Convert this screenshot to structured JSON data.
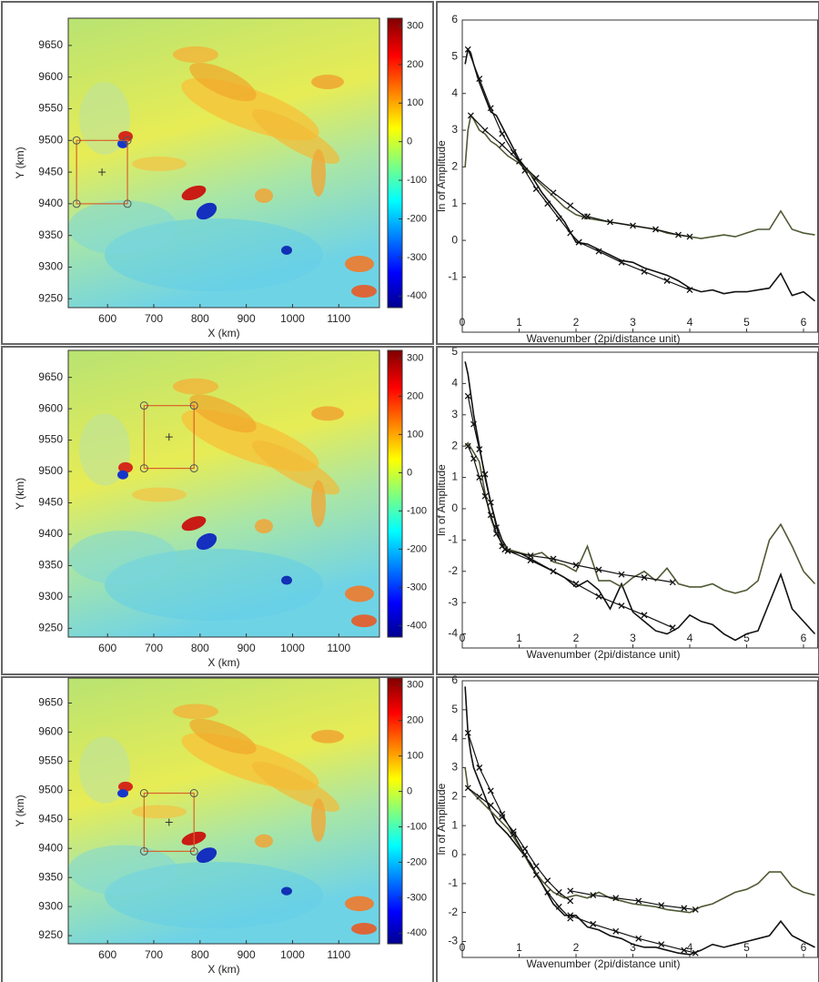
{
  "chart_data": [
    {
      "type": "map",
      "xlabel": "X (km)",
      "ylabel": "Y (km)",
      "xlim": [
        515,
        1188
      ],
      "xticks": [
        600,
        700,
        800,
        900,
        1000,
        1100
      ],
      "ylim": [
        9236,
        9693
      ],
      "yticks": [
        9250,
        9300,
        9350,
        9400,
        9450,
        9500,
        9550,
        9600,
        9650
      ],
      "colorbar": {
        "lim": [
          -430,
          320
        ],
        "ticks": [
          300,
          200,
          100,
          0,
          -100,
          -200,
          -300,
          -400
        ]
      },
      "box": {
        "x": [
          533,
          643
        ],
        "y": [
          9400,
          9500
        ],
        "center": [
          588,
          9450
        ]
      },
      "box_color": "#d9622b"
    },
    {
      "type": "line",
      "xlabel": "Wavenumber (2pi/distance unit)",
      "ylabel": "ln of Amplitude",
      "xlim": [
        0,
        6.25
      ],
      "xticks": [
        0,
        1,
        2,
        3,
        4,
        5,
        6
      ],
      "ylim": [
        -2.5,
        6
      ],
      "yticks": [
        -1,
        0,
        1,
        2,
        3,
        4,
        5,
        6
      ],
      "series": [
        {
          "color": "#111111",
          "x": [
            0.05,
            0.1,
            0.15,
            0.2,
            0.3,
            0.4,
            0.5,
            0.6,
            0.8,
            1.0,
            1.2,
            1.4,
            1.6,
            1.8,
            2.0,
            2.2,
            2.4,
            2.6,
            2.8,
            3.0,
            3.2,
            3.4,
            3.6,
            3.8,
            4.0,
            4.2,
            4.4,
            4.6,
            4.8,
            5.0,
            5.2,
            5.4,
            5.6,
            5.8,
            6.0,
            6.2
          ],
          "values": [
            4.8,
            5.2,
            5.1,
            4.8,
            4.3,
            3.9,
            3.5,
            3.4,
            2.8,
            2.2,
            1.8,
            1.3,
            0.9,
            0.5,
            -0.05,
            -0.1,
            -0.25,
            -0.4,
            -0.55,
            -0.6,
            -0.75,
            -0.85,
            -0.95,
            -1.1,
            -1.3,
            -1.4,
            -1.35,
            -1.45,
            -1.4,
            -1.4,
            -1.35,
            -1.3,
            -0.9,
            -1.5,
            -1.4,
            -1.65
          ]
        },
        {
          "color": "#4f5a35",
          "x": [
            0.05,
            0.1,
            0.15,
            0.2,
            0.3,
            0.4,
            0.5,
            0.6,
            0.8,
            1.0,
            1.2,
            1.4,
            1.6,
            1.8,
            2.0,
            2.2,
            2.4,
            2.6,
            2.8,
            3.0,
            3.2,
            3.4,
            3.6,
            3.8,
            4.0,
            4.2,
            4.4,
            4.6,
            4.8,
            5.0,
            5.2,
            5.4,
            5.6,
            5.8,
            6.0,
            6.2
          ],
          "values": [
            2.0,
            3.0,
            3.4,
            3.3,
            3.0,
            2.9,
            2.7,
            2.6,
            2.3,
            2.1,
            1.8,
            1.5,
            1.2,
            0.9,
            0.7,
            0.6,
            0.55,
            0.5,
            0.45,
            0.4,
            0.35,
            0.3,
            0.2,
            0.15,
            0.1,
            0.05,
            0.1,
            0.15,
            0.1,
            0.2,
            0.3,
            0.3,
            0.8,
            0.3,
            0.2,
            0.15
          ]
        },
        {
          "color": "#111111",
          "marker": "x",
          "x": [
            0.1,
            0.3,
            0.5,
            0.7,
            0.9,
            1.1,
            1.3,
            1.5,
            1.7,
            1.9,
            2.05
          ],
          "values": [
            5.2,
            4.4,
            3.6,
            2.9,
            2.4,
            1.9,
            1.4,
            1.0,
            0.6,
            0.2,
            -0.05
          ]
        },
        {
          "color": "#111111",
          "marker": "x",
          "x": [
            2.05,
            2.4,
            2.8,
            3.2,
            3.6,
            4.0
          ],
          "values": [
            -0.05,
            -0.3,
            -0.6,
            -0.85,
            -1.1,
            -1.35
          ]
        },
        {
          "color": "#111111",
          "marker": "x",
          "x": [
            0.15,
            0.4,
            0.7,
            1.0,
            1.3,
            1.6,
            1.9,
            2.15
          ],
          "values": [
            3.4,
            3.0,
            2.6,
            2.15,
            1.7,
            1.3,
            0.95,
            0.65
          ]
        },
        {
          "color": "#111111",
          "marker": "x",
          "x": [
            2.2,
            2.6,
            3.0,
            3.4,
            3.8,
            4.0
          ],
          "values": [
            0.65,
            0.5,
            0.4,
            0.3,
            0.15,
            0.1
          ]
        }
      ]
    },
    {
      "type": "map",
      "xlabel": "X (km)",
      "ylabel": "Y (km)",
      "xlim": [
        515,
        1188
      ],
      "xticks": [
        600,
        700,
        800,
        900,
        1000,
        1100
      ],
      "ylim": [
        9236,
        9693
      ],
      "yticks": [
        9250,
        9300,
        9350,
        9400,
        9450,
        9500,
        9550,
        9600,
        9650
      ],
      "colorbar": {
        "lim": [
          -430,
          320
        ],
        "ticks": [
          300,
          200,
          100,
          0,
          -100,
          -200,
          -300,
          -400
        ]
      },
      "box": {
        "x": [
          679,
          787
        ],
        "y": [
          9505,
          9605
        ],
        "center": [
          733,
          9555
        ]
      },
      "box_color": "#d9622b"
    },
    {
      "type": "line",
      "xlabel": "Wavenumber (2pi/distance unit)",
      "ylabel": "ln of Amplitude",
      "xlim": [
        0,
        6.25
      ],
      "xticks": [
        0,
        1,
        2,
        3,
        4,
        5,
        6
      ],
      "ylim": [
        -4.45,
        5
      ],
      "yticks": [
        -4,
        -3,
        -2,
        -1,
        0,
        1,
        2,
        3,
        4,
        5
      ],
      "series": [
        {
          "color": "#111111",
          "x": [
            0.05,
            0.1,
            0.2,
            0.3,
            0.4,
            0.5,
            0.6,
            0.7,
            0.8,
            1.0,
            1.2,
            1.4,
            1.6,
            1.8,
            2.0,
            2.2,
            2.4,
            2.6,
            2.8,
            3.0,
            3.2,
            3.4,
            3.6,
            3.8,
            4.0,
            4.2,
            4.4,
            4.6,
            4.8,
            5.0,
            5.2,
            5.4,
            5.6,
            5.8,
            6.0,
            6.2
          ],
          "values": [
            4.7,
            4.3,
            3.0,
            2.0,
            1.0,
            0.2,
            -0.5,
            -1.0,
            -1.3,
            -1.4,
            -1.6,
            -1.8,
            -2.0,
            -2.2,
            -2.5,
            -2.3,
            -2.6,
            -3.2,
            -2.4,
            -3.3,
            -3.6,
            -3.9,
            -4.0,
            -3.8,
            -3.4,
            -3.6,
            -3.7,
            -4.0,
            -4.2,
            -4.0,
            -3.9,
            -3.0,
            -2.1,
            -3.2,
            -3.6,
            -4.0
          ]
        },
        {
          "color": "#4f5a35",
          "x": [
            0.05,
            0.1,
            0.2,
            0.3,
            0.4,
            0.5,
            0.6,
            0.7,
            0.8,
            1.0,
            1.2,
            1.4,
            1.6,
            1.8,
            2.0,
            2.2,
            2.4,
            2.6,
            2.8,
            3.0,
            3.2,
            3.4,
            3.6,
            3.8,
            4.0,
            4.2,
            4.4,
            4.6,
            4.8,
            5.0,
            5.2,
            5.4,
            5.6,
            5.8,
            6.0,
            6.2
          ],
          "values": [
            2.0,
            2.1,
            1.8,
            1.5,
            0.5,
            -0.3,
            -0.8,
            -1.1,
            -1.3,
            -1.4,
            -1.5,
            -1.4,
            -1.7,
            -1.8,
            -2.0,
            -1.2,
            -2.3,
            -2.3,
            -2.5,
            -2.2,
            -2.0,
            -2.3,
            -1.9,
            -2.4,
            -2.5,
            -2.5,
            -2.4,
            -2.6,
            -2.7,
            -2.6,
            -2.3,
            -1.0,
            -0.5,
            -1.2,
            -2.0,
            -2.4
          ]
        },
        {
          "color": "#111111",
          "marker": "x",
          "x": [
            0.1,
            0.2,
            0.3,
            0.4,
            0.5,
            0.6,
            0.7
          ],
          "values": [
            3.6,
            2.7,
            1.9,
            1.1,
            0.2,
            -0.6,
            -1.2
          ]
        },
        {
          "color": "#111111",
          "marker": "x",
          "x": [
            0.75,
            1.2,
            1.6,
            2.0,
            2.4,
            2.8,
            3.2,
            3.7
          ],
          "values": [
            -1.3,
            -1.65,
            -2.0,
            -2.4,
            -2.8,
            -3.1,
            -3.4,
            -3.8
          ]
        },
        {
          "color": "#111111",
          "marker": "x",
          "x": [
            0.1,
            0.2,
            0.3,
            0.4,
            0.5,
            0.6,
            0.75
          ],
          "values": [
            2.0,
            1.6,
            1.0,
            0.4,
            -0.2,
            -0.8,
            -1.3
          ]
        },
        {
          "color": "#111111",
          "marker": "x",
          "x": [
            0.8,
            1.2,
            1.6,
            2.0,
            2.4,
            2.8,
            3.2,
            3.7
          ],
          "values": [
            -1.35,
            -1.5,
            -1.6,
            -1.8,
            -1.95,
            -2.1,
            -2.2,
            -2.35
          ]
        }
      ]
    },
    {
      "type": "map",
      "xlabel": "X (km)",
      "ylabel": "Y (km)",
      "xlim": [
        515,
        1188
      ],
      "xticks": [
        600,
        700,
        800,
        900,
        1000,
        1100
      ],
      "ylim": [
        9236,
        9693
      ],
      "yticks": [
        9250,
        9300,
        9350,
        9400,
        9450,
        9500,
        9550,
        9600,
        9650
      ],
      "colorbar": {
        "lim": [
          -430,
          320
        ],
        "ticks": [
          300,
          200,
          100,
          0,
          -100,
          -200,
          -300,
          -400
        ]
      },
      "box": {
        "x": [
          679,
          787
        ],
        "y": [
          9395,
          9495
        ],
        "center": [
          733,
          9445
        ]
      },
      "box_color": "#d9622b"
    },
    {
      "type": "line",
      "xlabel": "Wavenumber (2pi/distance unit)",
      "ylabel": "ln of Amplitude",
      "xlim": [
        0,
        6.25
      ],
      "xticks": [
        0,
        1,
        2,
        3,
        4,
        5,
        6
      ],
      "ylim": [
        -3.55,
        6
      ],
      "yticks": [
        -3,
        -2,
        -1,
        0,
        1,
        2,
        3,
        4,
        5,
        6
      ],
      "series": [
        {
          "color": "#111111",
          "x": [
            0.05,
            0.1,
            0.15,
            0.2,
            0.3,
            0.4,
            0.5,
            0.6,
            0.8,
            1.0,
            1.2,
            1.4,
            1.6,
            1.8,
            2.0,
            2.2,
            2.4,
            2.6,
            2.8,
            3.0,
            3.2,
            3.4,
            3.6,
            3.8,
            4.0,
            4.2,
            4.4,
            4.6,
            4.8,
            5.0,
            5.2,
            5.4,
            5.6,
            5.8,
            6.0,
            6.2
          ],
          "values": [
            5.8,
            4.2,
            3.5,
            3.0,
            2.5,
            2.0,
            1.5,
            1.1,
            0.7,
            0.2,
            -0.3,
            -1.0,
            -1.7,
            -2.1,
            -2.1,
            -2.5,
            -2.6,
            -2.8,
            -2.9,
            -3.1,
            -3.2,
            -3.2,
            -3.3,
            -3.4,
            -3.45,
            -3.3,
            -3.1,
            -3.2,
            -3.1,
            -3.0,
            -2.9,
            -2.8,
            -2.3,
            -2.8,
            -3.0,
            -3.2
          ]
        },
        {
          "color": "#4f5a35",
          "x": [
            0.05,
            0.1,
            0.15,
            0.2,
            0.3,
            0.4,
            0.5,
            0.6,
            0.8,
            1.0,
            1.2,
            1.4,
            1.6,
            1.8,
            2.0,
            2.2,
            2.4,
            2.6,
            2.8,
            3.0,
            3.2,
            3.4,
            3.6,
            3.8,
            4.0,
            4.2,
            4.4,
            4.6,
            4.8,
            5.0,
            5.2,
            5.4,
            5.6,
            5.8,
            6.0,
            6.2
          ],
          "values": [
            3.0,
            2.3,
            2.2,
            2.1,
            1.9,
            1.7,
            1.5,
            1.3,
            0.9,
            0.3,
            -0.4,
            -0.9,
            -1.3,
            -1.5,
            -1.4,
            -1.5,
            -1.3,
            -1.5,
            -1.6,
            -1.7,
            -1.75,
            -1.8,
            -1.9,
            -1.95,
            -2.0,
            -1.8,
            -1.7,
            -1.5,
            -1.3,
            -1.2,
            -1.0,
            -0.6,
            -0.6,
            -1.1,
            -1.3,
            -1.4
          ]
        },
        {
          "color": "#111111",
          "marker": "x",
          "x": [
            0.1,
            0.3,
            0.5,
            0.7,
            0.9,
            1.1,
            1.3,
            1.5,
            1.7,
            1.9
          ],
          "values": [
            4.2,
            3.0,
            2.2,
            1.4,
            0.7,
            0.0,
            -0.7,
            -1.3,
            -1.8,
            -2.2
          ]
        },
        {
          "color": "#111111",
          "marker": "x",
          "x": [
            1.9,
            2.3,
            2.7,
            3.1,
            3.5,
            3.9,
            4.1
          ],
          "values": [
            -2.1,
            -2.4,
            -2.65,
            -2.9,
            -3.1,
            -3.3,
            -3.4
          ]
        },
        {
          "color": "#111111",
          "marker": "x",
          "x": [
            0.1,
            0.3,
            0.5,
            0.7,
            0.9,
            1.1,
            1.3,
            1.5,
            1.7,
            1.9
          ],
          "values": [
            2.3,
            2.0,
            1.7,
            1.3,
            0.8,
            0.2,
            -0.4,
            -0.9,
            -1.3,
            -1.6
          ]
        },
        {
          "color": "#111111",
          "marker": "x",
          "x": [
            1.9,
            2.3,
            2.7,
            3.1,
            3.5,
            3.9,
            4.1
          ],
          "values": [
            -1.25,
            -1.4,
            -1.5,
            -1.6,
            -1.75,
            -1.85,
            -1.9
          ]
        }
      ]
    }
  ]
}
